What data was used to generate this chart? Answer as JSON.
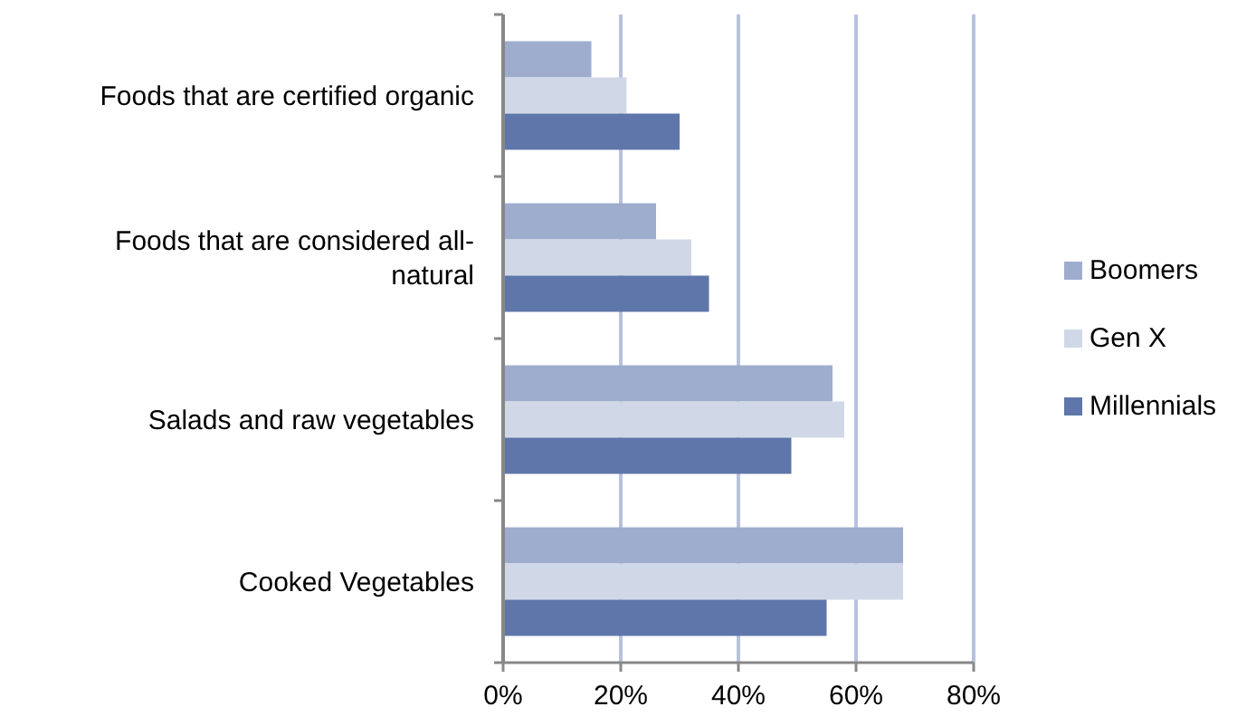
{
  "chart_data": {
    "type": "bar",
    "orientation": "horizontal",
    "categories": [
      "Foods that are certified organic",
      "Foods that are considered all-natural",
      "Salads and raw vegetables",
      "Cooked Vegetables"
    ],
    "series": [
      {
        "name": "Boomers",
        "color": "#9eadcd",
        "values": [
          15,
          26,
          56,
          68
        ]
      },
      {
        "name": "Gen X",
        "color": "#d0d8e7",
        "values": [
          21,
          32,
          58,
          68
        ]
      },
      {
        "name": "Millennials",
        "color": "#5e76aa",
        "values": [
          30,
          35,
          49,
          55
        ]
      }
    ],
    "xlim": [
      0,
      80
    ],
    "xticks": [
      {
        "value": 0,
        "label": "0%"
      },
      {
        "value": 20,
        "label": "20%"
      },
      {
        "value": 40,
        "label": "40%"
      },
      {
        "value": 60,
        "label": "60%"
      },
      {
        "value": 80,
        "label": "80%"
      }
    ],
    "grid": "x",
    "legend": "right"
  }
}
